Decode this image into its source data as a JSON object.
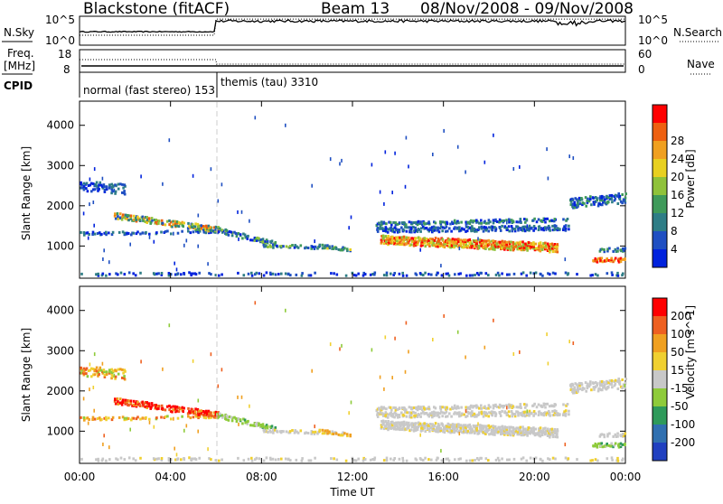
{
  "header": {
    "station": "Blackstone (fitACF)",
    "beam": "Beam 13",
    "dates": "08/Nov/2008 - 09/Nov/2008"
  },
  "left_labels": {
    "nsky": "N.Sky",
    "freq_line1": "Freq.",
    "freq_line2": "[MHz]",
    "cpid": "CPID"
  },
  "right_labels": {
    "nsearch": "N.Search",
    "nave": "Nave"
  },
  "ticks": {
    "nsky_left": [
      "10^5",
      "10^0"
    ],
    "nsearch_right": [
      "10^5",
      "10^0"
    ],
    "freq_left": [
      "18",
      "8"
    ],
    "nave_right": [
      "60",
      "0"
    ]
  },
  "cpid_labels": [
    "normal (fast stereo) 153",
    "themis (tau) 3310"
  ],
  "xlabel": "Time UT",
  "colors": {
    "power": [
      "#0022dd",
      "#1f4fc2",
      "#2e7d86",
      "#3f9a5a",
      "#8fc23a",
      "#e8d020",
      "#f0a020",
      "#ee6010",
      "#ff0000"
    ],
    "velocity": [
      "#2040c0",
      "#3070b0",
      "#2e9a5a",
      "#8ecb3a",
      "#c8c8c8",
      "#f0d030",
      "#f0a020",
      "#ee6020",
      "#ff0000"
    ],
    "ground_scatter": "#c8c8c8"
  },
  "chart_data": [
    {
      "type": "line",
      "name": "N.Sky / N.Search",
      "x_hours": [
        0,
        6,
        6.05,
        24
      ],
      "y_log10_sky": [
        2.3,
        2.3,
        4.6,
        4.4
      ],
      "y_log10_search": [
        1.6,
        1.6,
        4.8,
        4.8
      ],
      "xlim": [
        0,
        24
      ]
    },
    {
      "type": "line",
      "name": "Freq / Nave",
      "yticks": [
        "8",
        "18"
      ],
      "freq_mhz_solid": 10.5,
      "nave_dotted_first_6h": 40,
      "nave_dotted_after": 24
    },
    {
      "type": "heatmap",
      "ylabel": "Slant Range [km]",
      "colorbar_label": "Power [dB]",
      "colorbar_ticks": [
        "4",
        "8",
        "12",
        "16",
        "20",
        "24",
        "28"
      ],
      "yticks": [
        "1000",
        "2000",
        "3000",
        "4000"
      ],
      "ylim": [
        200,
        4600
      ],
      "xticks": [
        "00:00",
        "04:00",
        "08:00",
        "12:00",
        "16:00",
        "20:00",
        "00:00"
      ],
      "xlim_hours": [
        0,
        24
      ]
    },
    {
      "type": "heatmap",
      "ylabel": "Slant Range [km]",
      "colorbar_label": "Velocity [m s^-1]",
      "colorbar_ticks": [
        "200",
        "100",
        "50",
        "15",
        "-15",
        "-50",
        "-100",
        "-200"
      ],
      "yticks": [
        "1000",
        "2000",
        "3000",
        "4000"
      ],
      "ylim": [
        200,
        4600
      ],
      "xticks": [
        "00:00",
        "04:00",
        "08:00",
        "12:00",
        "16:00",
        "20:00",
        "00:00"
      ],
      "xlim_hours": [
        0,
        24
      ]
    }
  ]
}
